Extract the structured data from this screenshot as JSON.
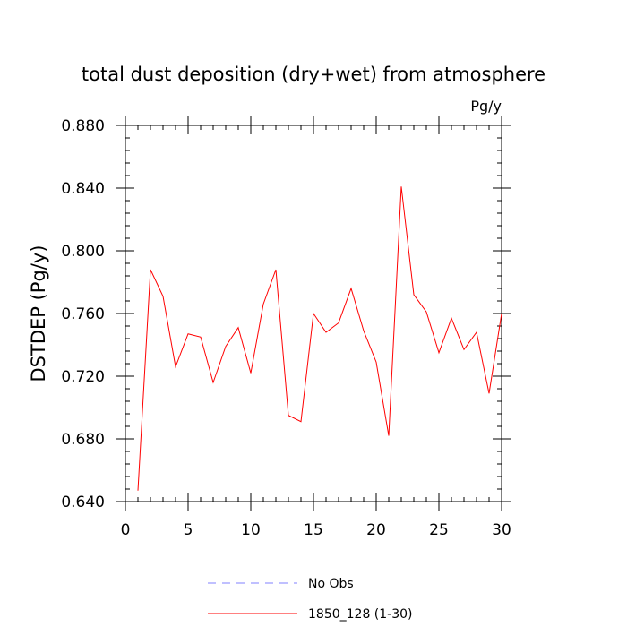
{
  "chart_data": {
    "type": "line",
    "title": "total dust deposition (dry+wet) from atmosphere",
    "units": "Pg/y",
    "ylabel": "DSTDEP  (Pg/y)",
    "xlabel": "",
    "xlim": [
      0,
      30
    ],
    "ylim": [
      0.64,
      0.88
    ],
    "x_ticks": [
      0,
      5,
      10,
      15,
      20,
      25,
      30
    ],
    "x_tick_labels": [
      "0",
      "5",
      "10",
      "15",
      "20",
      "25",
      "30"
    ],
    "y_ticks": [
      0.64,
      0.68,
      0.72,
      0.76,
      0.8,
      0.84,
      0.88
    ],
    "y_tick_labels": [
      "0.640",
      "0.680",
      "0.720",
      "0.760",
      "0.800",
      "0.840",
      "0.880"
    ],
    "grid": false,
    "legend_position": "bottom",
    "series": [
      {
        "name": "No Obs",
        "color": "#8080ff",
        "style": "dashed",
        "x": [],
        "values": []
      },
      {
        "name": "1850_128 (1-30)",
        "color": "#ff0000",
        "style": "solid",
        "x": [
          1,
          2,
          3,
          4,
          5,
          6,
          7,
          8,
          9,
          10,
          11,
          12,
          13,
          14,
          15,
          16,
          17,
          18,
          19,
          20,
          21,
          22,
          23,
          24,
          25,
          26,
          27,
          28,
          29,
          30
        ],
        "values": [
          0.647,
          0.788,
          0.771,
          0.726,
          0.747,
          0.745,
          0.716,
          0.739,
          0.751,
          0.722,
          0.766,
          0.788,
          0.695,
          0.691,
          0.76,
          0.748,
          0.754,
          0.776,
          0.749,
          0.729,
          0.682,
          0.841,
          0.772,
          0.761,
          0.735,
          0.757,
          0.737,
          0.748,
          0.709,
          0.76
        ]
      }
    ]
  }
}
